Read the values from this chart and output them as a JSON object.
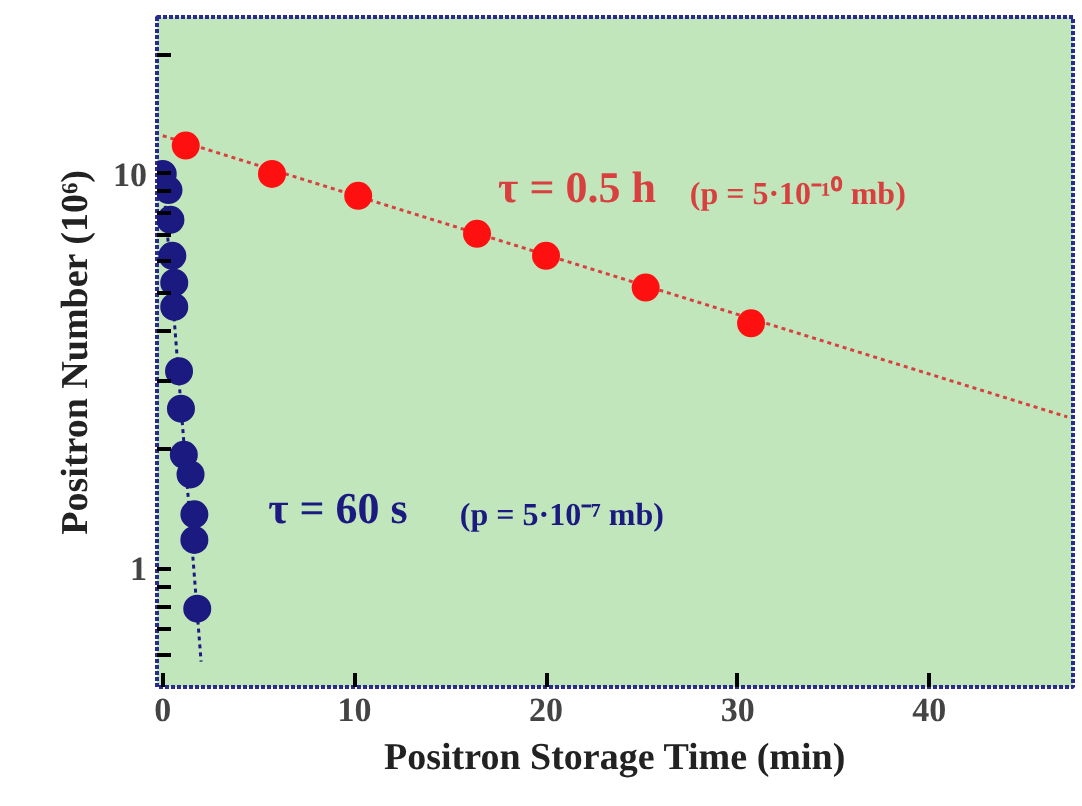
{
  "chart_data": {
    "type": "scatter",
    "xlabel": "Positron Storage Time (min)",
    "ylabel": "Positron Number (10⁶)",
    "log": "y",
    "xlim": [
      -0.3,
      47.5
    ],
    "ylim": [
      0.5,
      25
    ],
    "xticks": [
      0,
      10,
      20,
      30,
      40
    ],
    "yticks": [
      {
        "value": 0.6,
        "label": null
      },
      {
        "value": 0.7,
        "label": null
      },
      {
        "value": 0.8,
        "label": null
      },
      {
        "value": 0.9,
        "label": null
      },
      1,
      {
        "value": 2,
        "label": null
      },
      {
        "value": 3,
        "label": null
      },
      {
        "value": 4,
        "label": null
      },
      {
        "value": 5,
        "label": null
      },
      {
        "value": 6,
        "label": null
      },
      {
        "value": 7,
        "label": null
      },
      {
        "value": 8,
        "label": null
      },
      {
        "value": 9,
        "label": null
      },
      10,
      {
        "value": 20,
        "label": null
      }
    ],
    "grid": false,
    "marker": "circle",
    "series": [
      {
        "type": "line",
        "color": "#d84040",
        "line_style": "dotted",
        "marker": "none",
        "x": [
          0,
          47.2
        ],
        "values": [
          12.5,
          2.42
        ]
      },
      {
        "type": "line",
        "color": "#1a1a80",
        "line_style": "dotted",
        "marker": "none",
        "x": [
          0,
          2.0
        ],
        "values": [
          10,
          0.58
        ]
      },
      {
        "color": "#ff1010",
        "x": [
          1.2,
          5.7,
          10.2,
          16.4,
          20,
          25.2,
          30.7
        ],
        "values": [
          11.8,
          10,
          8.8,
          7.05,
          6.2,
          5.15,
          4.18
        ]
      },
      {
        "color": "#1a1a80",
        "x": [
          0,
          0.3,
          0.4,
          0.5,
          0.6,
          0.6,
          0.85,
          0.95,
          1.1,
          1.45,
          1.65,
          1.65,
          1.8
        ],
        "values": [
          10,
          9.1,
          7.65,
          6.2,
          5.3,
          4.6,
          3.16,
          2.54,
          1.94,
          1.73,
          1.37,
          1.18,
          0.79
        ]
      }
    ],
    "annotations": [
      "τ = 0.5 h",
      "(p = 5·10⁻¹⁰ mb)",
      "τ = 60 s",
      "(p = 5·10⁻⁷ mb)"
    ]
  }
}
